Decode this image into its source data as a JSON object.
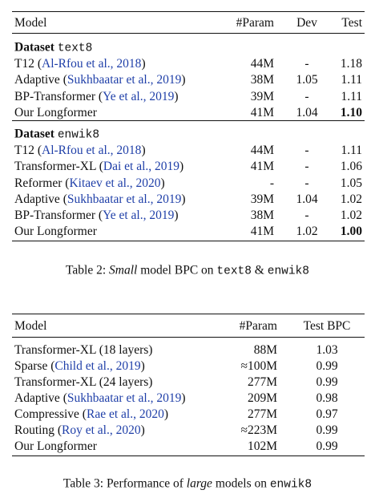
{
  "table2": {
    "header": [
      "Model",
      "#Param",
      "Dev",
      "Test"
    ],
    "sections": [
      {
        "label": [
          {
            "text": "Dataset ",
            "bold": true
          },
          {
            "text": "text8",
            "mono": true
          }
        ],
        "rows": [
          {
            "model": [
              {
                "text": "T12 ("
              },
              {
                "text": "Al-Rfou et al., 2018",
                "cite": true
              },
              {
                "text": ")"
              }
            ],
            "cells": [
              "44M",
              "-",
              "1.18"
            ]
          },
          {
            "model": [
              {
                "text": "Adaptive ("
              },
              {
                "text": "Sukhbaatar et al., 2019",
                "cite": true
              },
              {
                "text": ")"
              }
            ],
            "cells": [
              "38M",
              "1.05",
              "1.11"
            ]
          },
          {
            "model": [
              {
                "text": "BP-Transformer ("
              },
              {
                "text": "Ye et al., 2019",
                "cite": true
              },
              {
                "text": ")"
              }
            ],
            "cells": [
              "39M",
              "-",
              "1.11"
            ]
          },
          {
            "model": [
              {
                "text": "Our Longformer"
              }
            ],
            "cells": [
              "41M",
              "1.04",
              {
                "text": "1.10",
                "bold": true
              }
            ]
          }
        ]
      },
      {
        "label": [
          {
            "text": "Dataset ",
            "bold": true
          },
          {
            "text": "enwik8",
            "mono": true
          }
        ],
        "rows": [
          {
            "model": [
              {
                "text": "T12 ("
              },
              {
                "text": "Al-Rfou et al., 2018",
                "cite": true
              },
              {
                "text": ")"
              }
            ],
            "cells": [
              "44M",
              "-",
              "1.11"
            ]
          },
          {
            "model": [
              {
                "text": "Transformer-XL ("
              },
              {
                "text": "Dai et al., 2019",
                "cite": true
              },
              {
                "text": ")"
              }
            ],
            "cells": [
              "41M",
              "-",
              "1.06"
            ]
          },
          {
            "model": [
              {
                "text": "Reformer ("
              },
              {
                "text": "Kitaev et al., 2020",
                "cite": true
              },
              {
                "text": ")"
              }
            ],
            "cells": [
              "-",
              "-",
              "1.05"
            ]
          },
          {
            "model": [
              {
                "text": "Adaptive ("
              },
              {
                "text": "Sukhbaatar et al., 2019",
                "cite": true
              },
              {
                "text": ")"
              }
            ],
            "cells": [
              "39M",
              "1.04",
              "1.02"
            ]
          },
          {
            "model": [
              {
                "text": "BP-Transformer ("
              },
              {
                "text": "Ye et al., 2019",
                "cite": true
              },
              {
                "text": ")"
              }
            ],
            "cells": [
              "38M",
              "-",
              "1.02"
            ]
          },
          {
            "model": [
              {
                "text": "Our Longformer"
              }
            ],
            "cells": [
              "41M",
              "1.02",
              {
                "text": "1.00",
                "bold": true
              }
            ]
          }
        ]
      }
    ],
    "caption": [
      {
        "text": "Table 2: "
      },
      {
        "text": "Small",
        "italic": true
      },
      {
        "text": " model BPC on "
      },
      {
        "text": "text8",
        "mono": true
      },
      {
        "text": " & "
      },
      {
        "text": "enwik8",
        "mono": true
      }
    ]
  },
  "table3": {
    "header": [
      "Model",
      "#Param",
      "Test BPC"
    ],
    "sections": [
      {
        "rows": [
          {
            "model": [
              {
                "text": "Transformer-XL (18 layers)"
              }
            ],
            "cells": [
              "88M",
              "1.03"
            ]
          },
          {
            "model": [
              {
                "text": "Sparse ("
              },
              {
                "text": "Child et al., 2019",
                "cite": true
              },
              {
                "text": ")"
              }
            ],
            "cells": [
              "≈100M",
              "0.99"
            ]
          },
          {
            "model": [
              {
                "text": "Transformer-XL (24 layers)"
              }
            ],
            "cells": [
              "277M",
              "0.99"
            ]
          },
          {
            "model": [
              {
                "text": "Adaptive ("
              },
              {
                "text": "Sukhbaatar et al., 2019",
                "cite": true
              },
              {
                "text": ")"
              }
            ],
            "cells": [
              "209M",
              "0.98"
            ]
          },
          {
            "model": [
              {
                "text": "Compressive ("
              },
              {
                "text": "Rae et al., 2020",
                "cite": true
              },
              {
                "text": ")"
              }
            ],
            "cells": [
              "277M",
              "0.97"
            ]
          },
          {
            "model": [
              {
                "text": "Routing ("
              },
              {
                "text": "Roy et al., 2020",
                "cite": true
              },
              {
                "text": ")"
              }
            ],
            "cells": [
              "≈223M",
              "0.99"
            ]
          },
          {
            "model": [
              {
                "text": "Our Longformer"
              }
            ],
            "cells": [
              "102M",
              "0.99"
            ]
          }
        ]
      }
    ],
    "caption": [
      {
        "text": "Table 3: Performance of "
      },
      {
        "text": "large",
        "italic": true
      },
      {
        "text": " models on "
      },
      {
        "text": "enwik8",
        "mono": true
      }
    ]
  }
}
